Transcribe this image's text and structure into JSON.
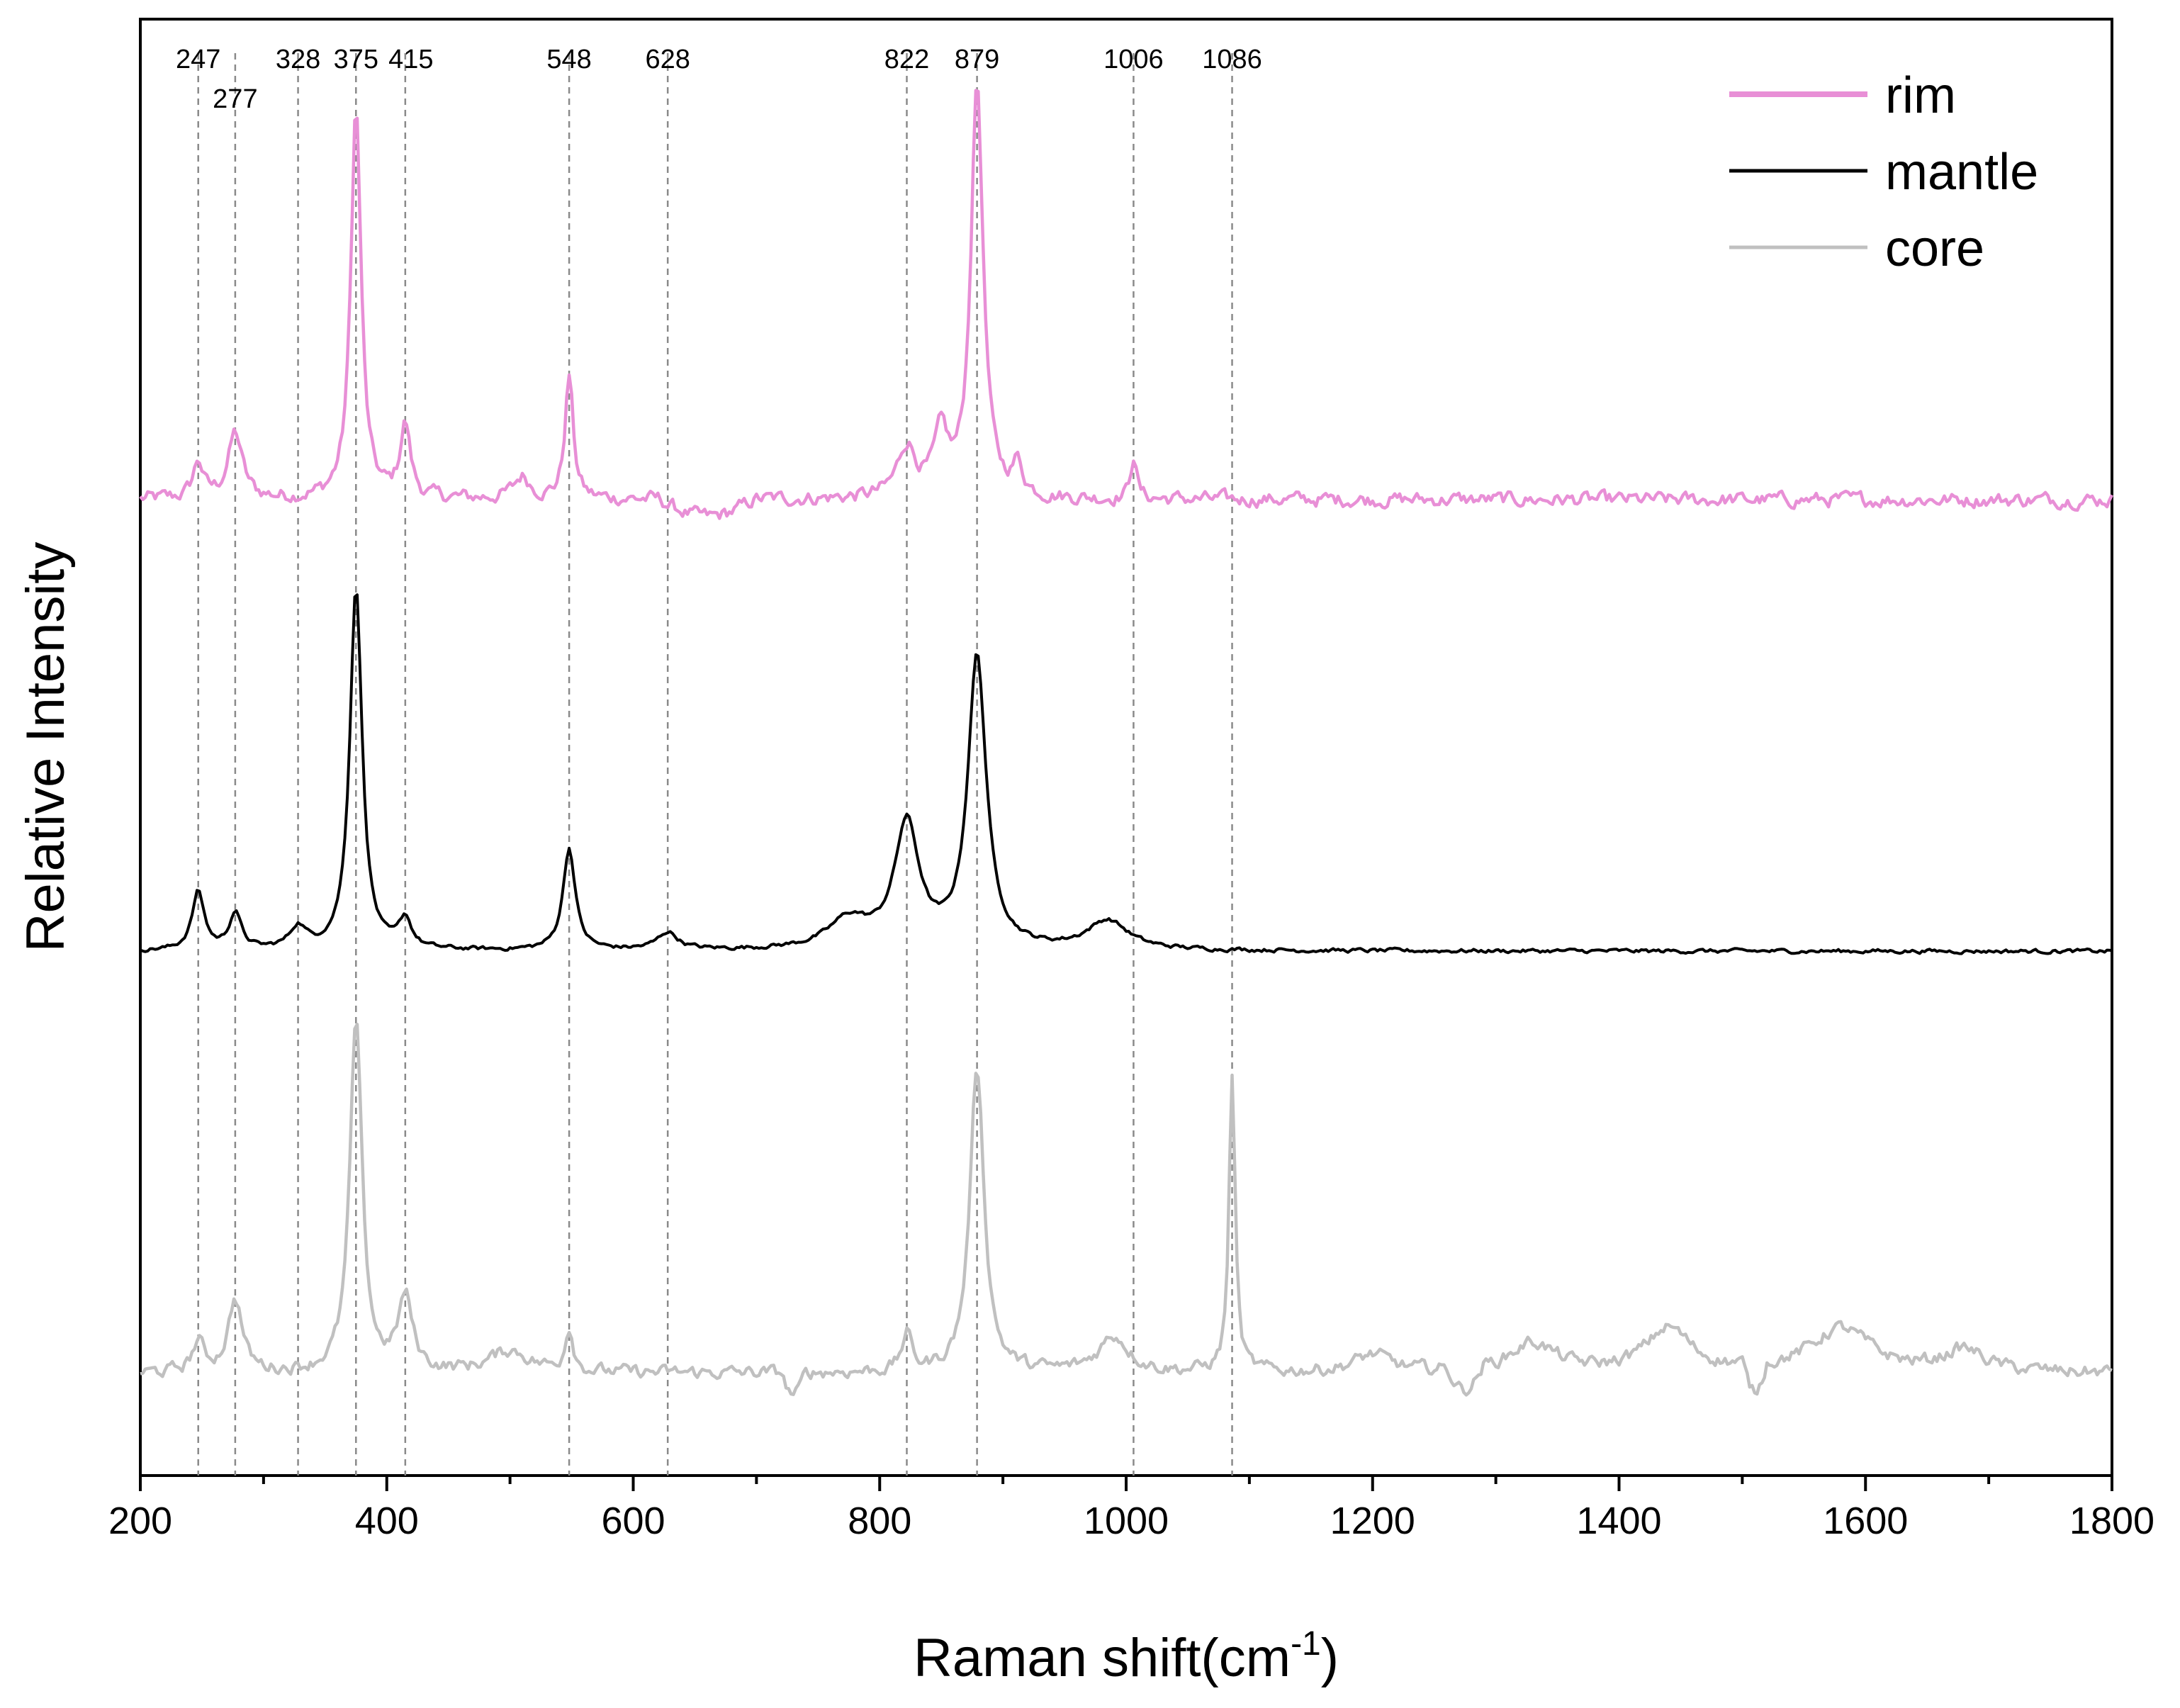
{
  "chart_data": {
    "type": "line",
    "xlabel": "Raman shift(cm",
    "xlabel_sup": "-1",
    "xlabel_end": ")",
    "ylabel": "Relative Intensity",
    "xlim": [
      200,
      1800
    ],
    "ylim": [
      0,
      100
    ],
    "x_ticks": [
      200,
      400,
      600,
      800,
      1000,
      1200,
      1400,
      1600,
      1800
    ],
    "x_tick_labels": [
      "200",
      "400",
      "600",
      "800",
      "1000",
      "1200",
      "1400",
      "1600",
      "1800"
    ],
    "x_minor_step": 100,
    "y_ticks_shown": false,
    "grid": false,
    "legend": {
      "placement": "top-right"
    },
    "peak_markers": [
      {
        "x": 247,
        "label": "247"
      },
      {
        "x": 277,
        "label": "277"
      },
      {
        "x": 328,
        "label": "328"
      },
      {
        "x": 375,
        "label": "375"
      },
      {
        "x": 415,
        "label": "415"
      },
      {
        "x": 548,
        "label": "548"
      },
      {
        "x": 628,
        "label": "628"
      },
      {
        "x": 822,
        "label": "822"
      },
      {
        "x": 879,
        "label": "879"
      },
      {
        "x": 1006,
        "label": "1006"
      },
      {
        "x": 1086,
        "label": "1086"
      }
    ],
    "series": [
      {
        "name": "rim",
        "color": "#e88fd6",
        "baseline": 67,
        "noise": 0.9,
        "peaks": [
          [
            247,
            2.5,
            5
          ],
          [
            277,
            4.5,
            7
          ],
          [
            375,
            27,
            5
          ],
          [
            415,
            5,
            5
          ],
          [
            510,
            1.5,
            8
          ],
          [
            548,
            8.5,
            4
          ],
          [
            822,
            3.5,
            9
          ],
          [
            850,
            4,
            7
          ],
          [
            879,
            28.5,
            6
          ],
          [
            912,
            2,
            5
          ],
          [
            1006,
            3,
            3
          ]
        ],
        "dips": [
          [
            620,
            700,
            1.2
          ]
        ]
      },
      {
        "name": "mantle",
        "color": "#000000",
        "baseline": 36,
        "noise": 0.25,
        "peaks": [
          [
            247,
            4,
            6
          ],
          [
            277,
            2.5,
            6
          ],
          [
            328,
            1.5,
            8
          ],
          [
            375,
            25,
            6
          ],
          [
            415,
            2,
            6
          ],
          [
            548,
            7,
            6
          ],
          [
            628,
            1.2,
            10
          ],
          [
            775,
            2,
            20
          ],
          [
            822,
            8.5,
            12
          ],
          [
            879,
            20,
            9
          ],
          [
            985,
            2,
            20
          ]
        ],
        "dips": []
      },
      {
        "name": "core",
        "color": "#c0c0c0",
        "baseline": 7,
        "noise": 0.8,
        "peaks": [
          [
            247,
            2,
            6
          ],
          [
            277,
            5,
            7
          ],
          [
            375,
            24,
            6
          ],
          [
            415,
            5,
            7
          ],
          [
            500,
            1.5,
            20
          ],
          [
            548,
            3,
            4
          ],
          [
            822,
            2.5,
            5
          ],
          [
            879,
            21,
            7
          ],
          [
            990,
            2.5,
            15
          ],
          [
            1086,
            20.5,
            3
          ],
          [
            1200,
            1.2,
            18
          ],
          [
            1330,
            2,
            22
          ],
          [
            1440,
            3,
            22
          ],
          [
            1580,
            3,
            30
          ],
          [
            1680,
            1.5,
            20
          ]
        ],
        "dips": [
          [
            720,
            740,
            1.5
          ],
          [
            1260,
            1290,
            1.5
          ],
          [
            1500,
            1520,
            2
          ]
        ]
      }
    ]
  }
}
